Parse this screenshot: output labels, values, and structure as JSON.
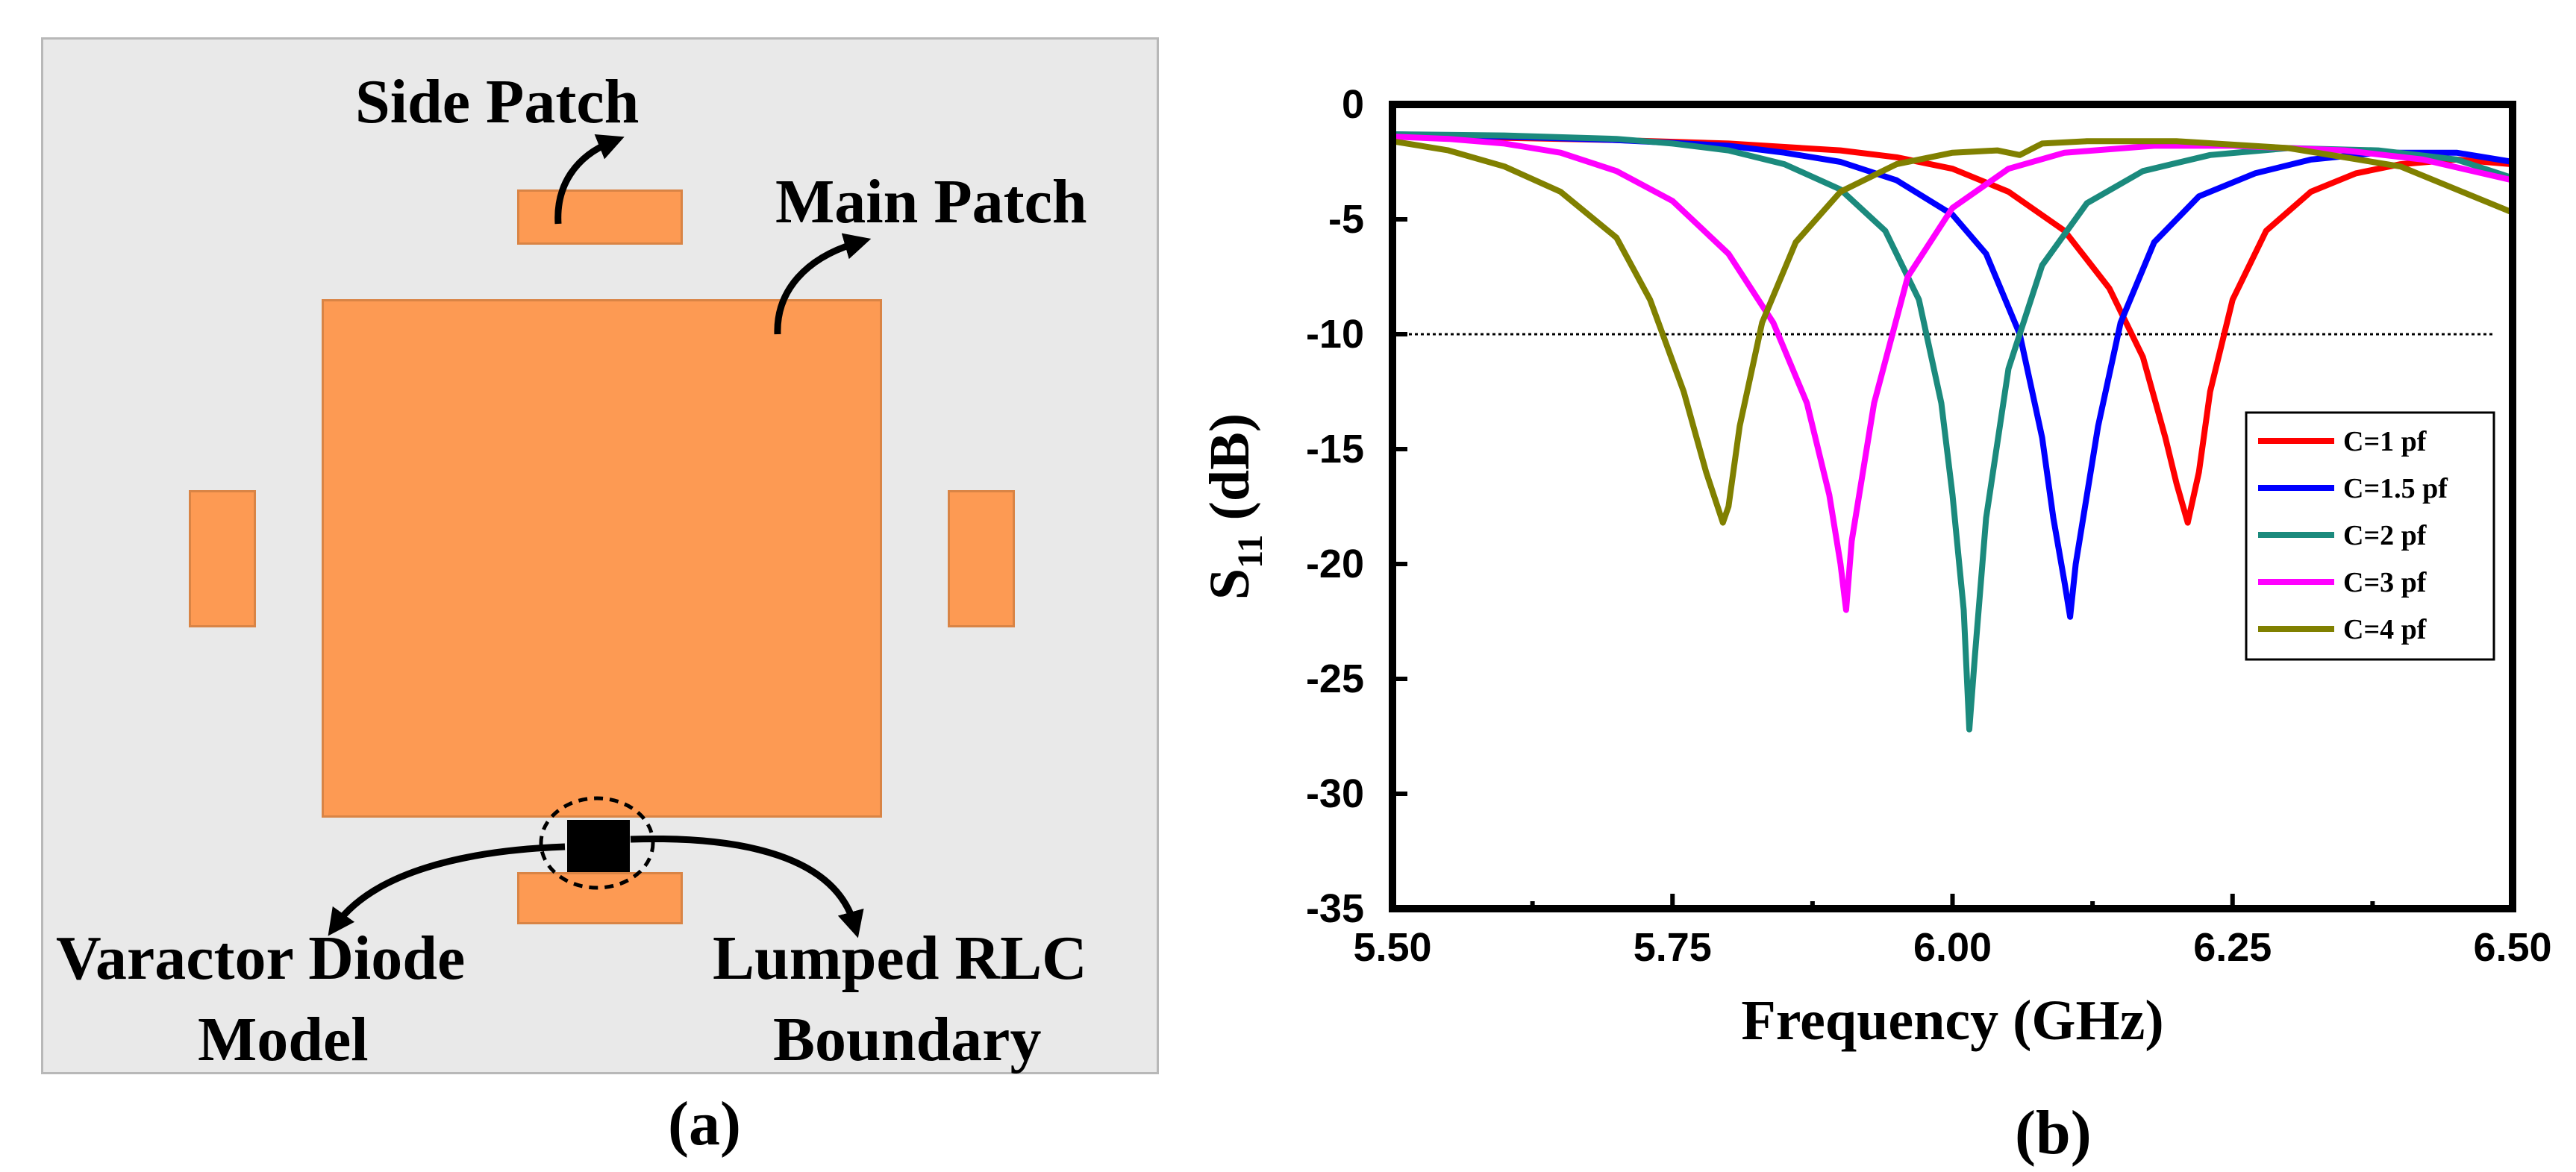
{
  "panel_a": {
    "labels": {
      "side_patch": "Side Patch",
      "main_patch": "Main Patch",
      "varactor_line1": "Varactor Diode",
      "varactor_line2": "Model",
      "lumped_line1": "Lumped RLC",
      "lumped_line2": "Boundary"
    },
    "caption": "(a)",
    "colors": {
      "patch": "#fd9a53",
      "substrate": "#e9e9e9"
    }
  },
  "panel_b": {
    "caption": "(b)"
  },
  "chart_data": {
    "type": "line",
    "title": "",
    "xlabel": "Frequency (GHz)",
    "ylabel_main": "S",
    "ylabel_sub": "11",
    "ylabel_rest": " (dB)",
    "xlim": [
      5.5,
      6.5
    ],
    "ylim": [
      -35,
      0
    ],
    "x_ticks": [
      5.5,
      5.75,
      6.0,
      6.25,
      6.5
    ],
    "x_tick_labels": [
      "5.50",
      "5.75",
      "6.00",
      "6.25",
      "6.50"
    ],
    "y_ticks": [
      0,
      -5,
      -10,
      -15,
      -20,
      -25,
      -30,
      -35
    ],
    "y_tick_labels": [
      "0",
      "-5",
      "-10",
      "-15",
      "-20",
      "-25",
      "-30",
      "-35"
    ],
    "reference_line": {
      "y": -10,
      "style": "dotted"
    },
    "legend_position": "center-right",
    "series": [
      {
        "name": "C=1 pf",
        "color": "#ff0000",
        "points": [
          [
            5.5,
            -1.4
          ],
          [
            5.6,
            -1.45
          ],
          [
            5.7,
            -1.55
          ],
          [
            5.8,
            -1.7
          ],
          [
            5.9,
            -2.0
          ],
          [
            5.95,
            -2.3
          ],
          [
            6.0,
            -2.8
          ],
          [
            6.05,
            -3.8
          ],
          [
            6.1,
            -5.5
          ],
          [
            6.14,
            -8.0
          ],
          [
            6.17,
            -11.0
          ],
          [
            6.19,
            -14.5
          ],
          [
            6.2,
            -16.5
          ],
          [
            6.21,
            -18.2
          ],
          [
            6.22,
            -16.0
          ],
          [
            6.23,
            -12.5
          ],
          [
            6.25,
            -8.5
          ],
          [
            6.28,
            -5.5
          ],
          [
            6.32,
            -3.8
          ],
          [
            6.36,
            -3.0
          ],
          [
            6.4,
            -2.6
          ],
          [
            6.45,
            -2.4
          ],
          [
            6.5,
            -2.6
          ]
        ]
      },
      {
        "name": "C=1.5 pf",
        "color": "#0000ff",
        "points": [
          [
            5.5,
            -1.3
          ],
          [
            5.6,
            -1.4
          ],
          [
            5.7,
            -1.55
          ],
          [
            5.8,
            -1.8
          ],
          [
            5.85,
            -2.1
          ],
          [
            5.9,
            -2.5
          ],
          [
            5.95,
            -3.3
          ],
          [
            6.0,
            -4.8
          ],
          [
            6.03,
            -6.5
          ],
          [
            6.06,
            -10.0
          ],
          [
            6.08,
            -14.5
          ],
          [
            6.09,
            -18.0
          ],
          [
            6.1,
            -20.8
          ],
          [
            6.105,
            -22.3
          ],
          [
            6.11,
            -20.0
          ],
          [
            6.13,
            -14.0
          ],
          [
            6.15,
            -9.5
          ],
          [
            6.18,
            -6.0
          ],
          [
            6.22,
            -4.0
          ],
          [
            6.27,
            -3.0
          ],
          [
            6.32,
            -2.4
          ],
          [
            6.38,
            -2.1
          ],
          [
            6.45,
            -2.1
          ],
          [
            6.5,
            -2.5
          ]
        ]
      },
      {
        "name": "C=2 pf",
        "color": "#1b8a7d",
        "points": [
          [
            5.5,
            -1.3
          ],
          [
            5.6,
            -1.35
          ],
          [
            5.7,
            -1.5
          ],
          [
            5.75,
            -1.7
          ],
          [
            5.8,
            -2.0
          ],
          [
            5.85,
            -2.6
          ],
          [
            5.9,
            -3.7
          ],
          [
            5.94,
            -5.5
          ],
          [
            5.97,
            -8.5
          ],
          [
            5.99,
            -13.0
          ],
          [
            6.0,
            -17.0
          ],
          [
            6.01,
            -22.0
          ],
          [
            6.015,
            -27.2
          ],
          [
            6.02,
            -24.0
          ],
          [
            6.03,
            -18.0
          ],
          [
            6.05,
            -11.5
          ],
          [
            6.08,
            -7.0
          ],
          [
            6.12,
            -4.3
          ],
          [
            6.17,
            -2.9
          ],
          [
            6.23,
            -2.2
          ],
          [
            6.3,
            -1.9
          ],
          [
            6.38,
            -2.0
          ],
          [
            6.45,
            -2.4
          ],
          [
            6.5,
            -3.2
          ]
        ]
      },
      {
        "name": "C=3 pf",
        "color": "#ff00ff",
        "points": [
          [
            5.5,
            -1.4
          ],
          [
            5.55,
            -1.5
          ],
          [
            5.6,
            -1.7
          ],
          [
            5.65,
            -2.1
          ],
          [
            5.7,
            -2.9
          ],
          [
            5.75,
            -4.2
          ],
          [
            5.8,
            -6.5
          ],
          [
            5.84,
            -9.5
          ],
          [
            5.87,
            -13.0
          ],
          [
            5.89,
            -17.0
          ],
          [
            5.9,
            -20.0
          ],
          [
            5.905,
            -22.0
          ],
          [
            5.91,
            -19.0
          ],
          [
            5.93,
            -13.0
          ],
          [
            5.96,
            -7.5
          ],
          [
            6.0,
            -4.5
          ],
          [
            6.05,
            -2.8
          ],
          [
            6.1,
            -2.1
          ],
          [
            6.18,
            -1.8
          ],
          [
            6.25,
            -1.8
          ],
          [
            6.35,
            -2.0
          ],
          [
            6.42,
            -2.4
          ],
          [
            6.5,
            -3.3
          ]
        ]
      },
      {
        "name": "C=4 pf",
        "color": "#808000",
        "points": [
          [
            5.5,
            -1.6
          ],
          [
            5.55,
            -2.0
          ],
          [
            5.6,
            -2.7
          ],
          [
            5.65,
            -3.8
          ],
          [
            5.7,
            -5.8
          ],
          [
            5.73,
            -8.5
          ],
          [
            5.76,
            -12.5
          ],
          [
            5.78,
            -16.0
          ],
          [
            5.795,
            -18.2
          ],
          [
            5.8,
            -17.5
          ],
          [
            5.81,
            -14.0
          ],
          [
            5.83,
            -9.5
          ],
          [
            5.86,
            -6.0
          ],
          [
            5.9,
            -3.8
          ],
          [
            5.95,
            -2.6
          ],
          [
            6.0,
            -2.1
          ],
          [
            6.04,
            -2.0
          ],
          [
            6.06,
            -2.2
          ],
          [
            6.08,
            -1.7
          ],
          [
            6.12,
            -1.6
          ],
          [
            6.2,
            -1.6
          ],
          [
            6.3,
            -1.9
          ],
          [
            6.4,
            -2.7
          ],
          [
            6.5,
            -4.7
          ]
        ]
      }
    ]
  }
}
